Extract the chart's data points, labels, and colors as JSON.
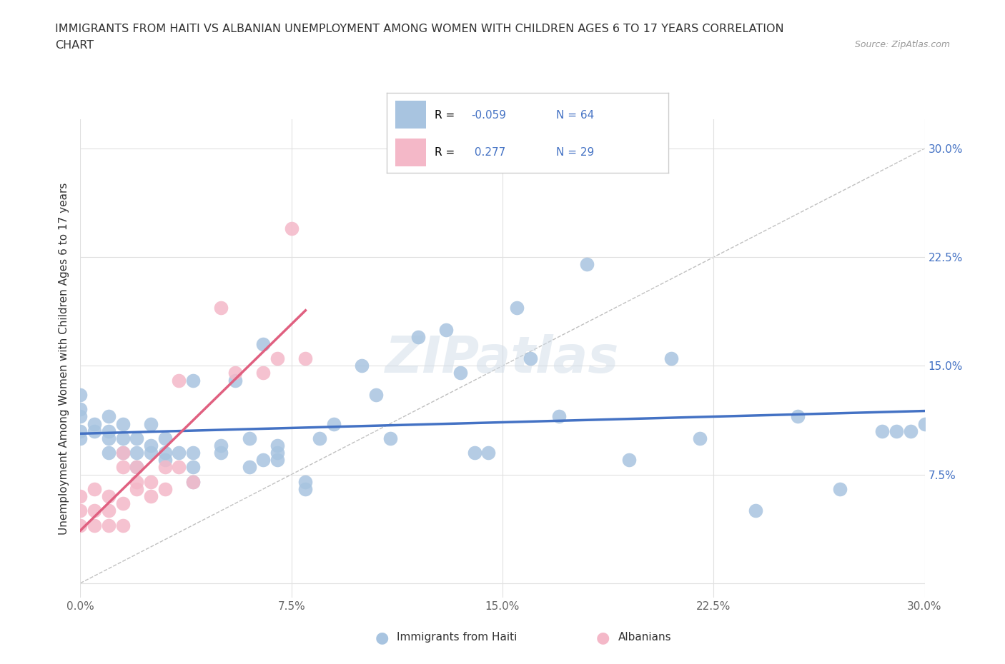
{
  "title_line1": "IMMIGRANTS FROM HAITI VS ALBANIAN UNEMPLOYMENT AMONG WOMEN WITH CHILDREN AGES 6 TO 17 YEARS CORRELATION",
  "title_line2": "CHART",
  "source_text": "Source: ZipAtlas.com",
  "ylabel": "Unemployment Among Women with Children Ages 6 to 17 years",
  "xlim": [
    0.0,
    0.3
  ],
  "ylim": [
    -0.01,
    0.32
  ],
  "xtick_vals": [
    0.0,
    0.075,
    0.15,
    0.225,
    0.3
  ],
  "ytick_vals": [
    0.0,
    0.075,
    0.15,
    0.225,
    0.3
  ],
  "haiti_color": "#a8c4e0",
  "albanian_color": "#f4b8c8",
  "haiti_R": -0.059,
  "haiti_N": 64,
  "albanian_R": 0.277,
  "albanian_N": 29,
  "legend_R_color": "#4472c4",
  "haiti_scatter_x": [
    0.0,
    0.0,
    0.0,
    0.0,
    0.0,
    0.005,
    0.005,
    0.01,
    0.01,
    0.01,
    0.01,
    0.015,
    0.015,
    0.015,
    0.02,
    0.02,
    0.02,
    0.025,
    0.025,
    0.025,
    0.03,
    0.03,
    0.03,
    0.035,
    0.04,
    0.04,
    0.04,
    0.04,
    0.05,
    0.05,
    0.055,
    0.06,
    0.06,
    0.065,
    0.065,
    0.07,
    0.07,
    0.07,
    0.08,
    0.08,
    0.085,
    0.09,
    0.1,
    0.105,
    0.11,
    0.12,
    0.13,
    0.135,
    0.14,
    0.145,
    0.155,
    0.16,
    0.17,
    0.18,
    0.195,
    0.21,
    0.22,
    0.24,
    0.255,
    0.27,
    0.285,
    0.29,
    0.295,
    0.3
  ],
  "haiti_scatter_y": [
    0.1,
    0.105,
    0.115,
    0.12,
    0.13,
    0.105,
    0.11,
    0.09,
    0.1,
    0.105,
    0.115,
    0.09,
    0.1,
    0.11,
    0.08,
    0.09,
    0.1,
    0.09,
    0.095,
    0.11,
    0.085,
    0.09,
    0.1,
    0.09,
    0.07,
    0.08,
    0.09,
    0.14,
    0.09,
    0.095,
    0.14,
    0.08,
    0.1,
    0.085,
    0.165,
    0.085,
    0.09,
    0.095,
    0.065,
    0.07,
    0.1,
    0.11,
    0.15,
    0.13,
    0.1,
    0.17,
    0.175,
    0.145,
    0.09,
    0.09,
    0.19,
    0.155,
    0.115,
    0.22,
    0.085,
    0.155,
    0.1,
    0.05,
    0.115,
    0.065,
    0.105,
    0.105,
    0.105,
    0.11
  ],
  "albanian_scatter_x": [
    0.0,
    0.0,
    0.0,
    0.005,
    0.005,
    0.005,
    0.01,
    0.01,
    0.01,
    0.015,
    0.015,
    0.015,
    0.015,
    0.02,
    0.02,
    0.02,
    0.025,
    0.025,
    0.03,
    0.03,
    0.035,
    0.035,
    0.04,
    0.05,
    0.055,
    0.065,
    0.07,
    0.075,
    0.08
  ],
  "albanian_scatter_y": [
    0.04,
    0.05,
    0.06,
    0.04,
    0.05,
    0.065,
    0.04,
    0.05,
    0.06,
    0.04,
    0.055,
    0.08,
    0.09,
    0.065,
    0.07,
    0.08,
    0.06,
    0.07,
    0.065,
    0.08,
    0.08,
    0.14,
    0.07,
    0.19,
    0.145,
    0.145,
    0.155,
    0.245,
    0.155
  ],
  "diag_line_color": "#c0c0c0",
  "haiti_trend_color": "#4472c4",
  "albanian_trend_color": "#e06080",
  "background_color": "#ffffff",
  "plot_bg_color": "#ffffff"
}
